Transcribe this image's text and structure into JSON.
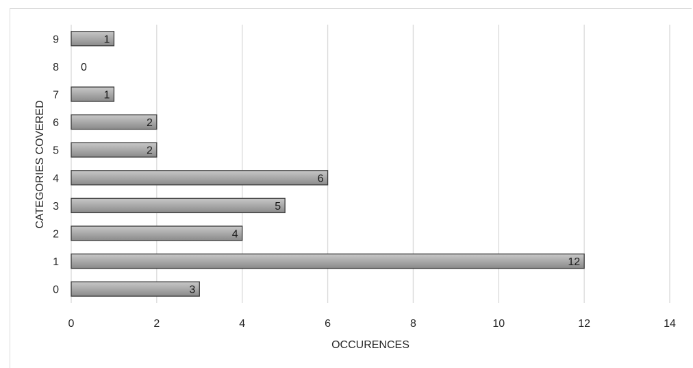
{
  "chart_data": {
    "type": "bar",
    "orientation": "horizontal",
    "categories": [
      "0",
      "1",
      "2",
      "3",
      "4",
      "5",
      "6",
      "7",
      "8",
      "9"
    ],
    "values": [
      3,
      12,
      4,
      5,
      6,
      2,
      2,
      1,
      0,
      1
    ],
    "xlabel": "OCCURENCES",
    "ylabel": "CATEGORIES COVERED",
    "xlim": [
      0,
      14
    ],
    "xticks": [
      "0",
      "2",
      "4",
      "6",
      "8",
      "10",
      "12",
      "14"
    ],
    "grid": "vertical",
    "data_labels": true,
    "legend": "none",
    "colors": {
      "bar_fill_light": "#c8c8c8",
      "bar_fill_dark": "#8a8a8a",
      "bar_stroke": "#3a3a3a",
      "grid": "#d9d9d9",
      "text": "#262626"
    }
  }
}
